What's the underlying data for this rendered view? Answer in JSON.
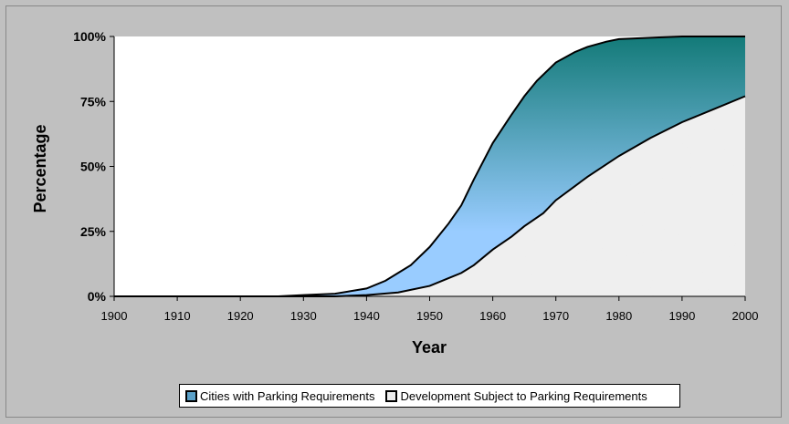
{
  "chart_data": {
    "type": "area",
    "title": "",
    "xlabel": "Year",
    "ylabel": "Percentage",
    "xlim": [
      1900,
      2000
    ],
    "ylim": [
      0,
      100
    ],
    "x_ticks": [
      "1900",
      "1910",
      "1920",
      "1930",
      "1940",
      "1950",
      "1960",
      "1970",
      "1980",
      "1990",
      "2000"
    ],
    "y_ticks": [
      "0%",
      "25%",
      "50%",
      "75%",
      "100%"
    ],
    "legend_position": "bottom",
    "series": [
      {
        "name": "Cities with Parking Requirements",
        "color_top": "#137a78",
        "color_bottom": "#99ccff",
        "x": [
          1900,
          1926,
          1930,
          1935,
          1940,
          1943,
          1945,
          1947,
          1950,
          1953,
          1955,
          1957,
          1960,
          1963,
          1965,
          1967,
          1970,
          1973,
          1975,
          1978,
          1980,
          1985,
          1990,
          2000
        ],
        "y": [
          0,
          0,
          0.5,
          1,
          3,
          6,
          9,
          12,
          19,
          28,
          35,
          45,
          59,
          70,
          77,
          83,
          90,
          94,
          96,
          98,
          99,
          99.5,
          100,
          100
        ]
      },
      {
        "name": "Development Subject to Parking Requirements",
        "color": "#eeeeee",
        "x": [
          1900,
          1935,
          1940,
          1945,
          1950,
          1953,
          1955,
          1957,
          1960,
          1963,
          1965,
          1968,
          1970,
          1975,
          1980,
          1985,
          1990,
          1995,
          2000
        ],
        "y": [
          0,
          0,
          0.5,
          1.5,
          4,
          7,
          9,
          12,
          18,
          23,
          27,
          32,
          37,
          46,
          54,
          61,
          67,
          72,
          77
        ]
      }
    ]
  }
}
